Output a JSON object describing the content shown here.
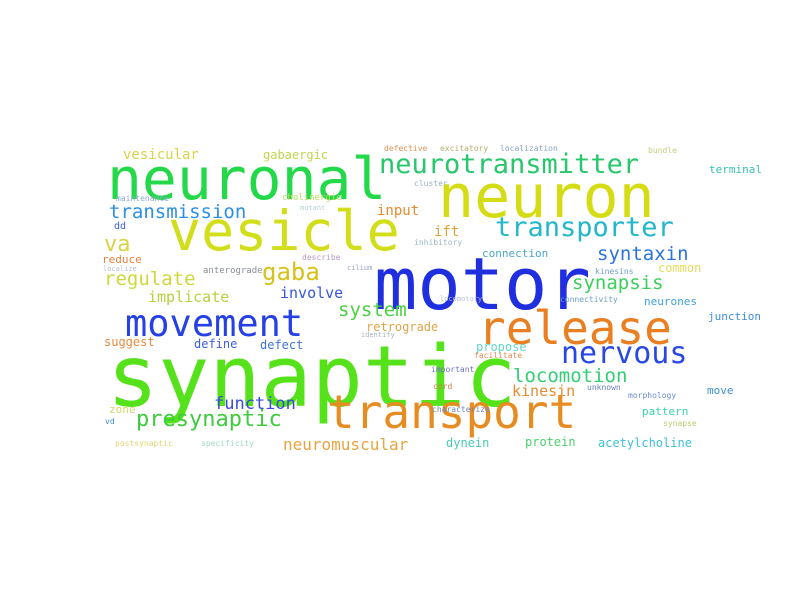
{
  "words": [
    {
      "text": "synaptic",
      "color": "#56e21a"
    },
    {
      "text": "motor",
      "color": "#1f2fe0"
    },
    {
      "text": "neuronal",
      "color": "#23d94a"
    },
    {
      "text": "neuron",
      "color": "#d6dc14"
    },
    {
      "text": "vesicle",
      "color": "#d2de1a"
    },
    {
      "text": "release",
      "color": "#ea7f22"
    },
    {
      "text": "transport",
      "color": "#e78c20"
    },
    {
      "text": "neurotransmitter",
      "color": "#27c86c"
    },
    {
      "text": "movement",
      "color": "#2540e6"
    },
    {
      "text": "nervous",
      "color": "#2848e5"
    },
    {
      "text": "transporter",
      "color": "#22b7c9"
    },
    {
      "text": "gaba",
      "color": "#d8c118"
    },
    {
      "text": "presynaptic",
      "color": "#3ecb3d"
    },
    {
      "text": "transmission",
      "color": "#2b8fe3"
    },
    {
      "text": "syntaxin",
      "color": "#2b72e1"
    },
    {
      "text": "synapsis",
      "color": "#3bd05a"
    },
    {
      "text": "locomotion",
      "color": "#32cf73"
    },
    {
      "text": "regulate",
      "color": "#cfd83a"
    },
    {
      "text": "system",
      "color": "#49d23d"
    },
    {
      "text": "function",
      "color": "#3a48df"
    },
    {
      "text": "neuromuscular",
      "color": "#e7a440"
    },
    {
      "text": "implicate",
      "color": "#b5d23c"
    },
    {
      "text": "involve",
      "color": "#3557e0"
    },
    {
      "text": "va",
      "color": "#d9d33f"
    },
    {
      "text": "kinesin",
      "color": "#e38c36"
    },
    {
      "text": "ift",
      "color": "#e0a43a"
    },
    {
      "text": "input",
      "color": "#e68a2c"
    },
    {
      "text": "vesicular",
      "color": "#d8d44b"
    },
    {
      "text": "gabaergic",
      "color": "#c4d34c"
    },
    {
      "text": "retrograde",
      "color": "#dfa34a"
    },
    {
      "text": "define",
      "color": "#3b5fdf"
    },
    {
      "text": "defect",
      "color": "#3b73df"
    },
    {
      "text": "suggest",
      "color": "#ea8a3d"
    },
    {
      "text": "propose",
      "color": "#5fd6c8"
    },
    {
      "text": "protein",
      "color": "#49d16a"
    },
    {
      "text": "dynein",
      "color": "#48c8b6"
    },
    {
      "text": "acetylcholine",
      "color": "#3fbfd8"
    },
    {
      "text": "pattern",
      "color": "#3bd3a8"
    },
    {
      "text": "zone",
      "color": "#cfd86e"
    },
    {
      "text": "neurones",
      "color": "#3da2dc"
    },
    {
      "text": "connection",
      "color": "#4aa7c8"
    },
    {
      "text": "common",
      "color": "#e3da60"
    },
    {
      "text": "reduce",
      "color": "#e77f3f"
    },
    {
      "text": "anterograde",
      "color": "#8a8f96"
    },
    {
      "text": "cholinergic",
      "color": "#b7dc5a"
    },
    {
      "text": "maintenance",
      "color": "#8fa9d7"
    },
    {
      "text": "dd",
      "color": "#3d61d8"
    },
    {
      "text": "terminal",
      "color": "#38c3b0"
    },
    {
      "text": "junction",
      "color": "#3e8fdc"
    },
    {
      "text": "move",
      "color": "#3e8fdc"
    },
    {
      "text": "postsynaptic",
      "color": "#e2d86d"
    },
    {
      "text": "specificity",
      "color": "#9ed9c9"
    },
    {
      "text": "vd",
      "color": "#3f88d6"
    },
    {
      "text": "important",
      "color": "#6e73c2"
    },
    {
      "text": "characterize",
      "color": "#6b88bb"
    },
    {
      "text": "morphology",
      "color": "#6d8fce"
    },
    {
      "text": "synapse",
      "color": "#b8cf6b"
    },
    {
      "text": "kinesins",
      "color": "#6ea0c9"
    },
    {
      "text": "connectivity",
      "color": "#6ea0c9"
    },
    {
      "text": "cord",
      "color": "#d17a4d"
    },
    {
      "text": "unknown",
      "color": "#6a82c2"
    },
    {
      "text": "inhibitory",
      "color": "#9db6c4"
    },
    {
      "text": "facilitate",
      "color": "#ea8a5a"
    },
    {
      "text": "localization",
      "color": "#8aa3c2"
    },
    {
      "text": "excitatory",
      "color": "#b4ae6d"
    },
    {
      "text": "defective",
      "color": "#e09252"
    },
    {
      "text": "cluster",
      "color": "#9bb2be"
    },
    {
      "text": "bundle",
      "color": "#c7cc7e"
    },
    {
      "text": "describe",
      "color": "#b49ac4"
    },
    {
      "text": "mutant",
      "color": "#b4cfd6"
    },
    {
      "text": "identify",
      "color": "#a6b3c2"
    },
    {
      "text": "cilium",
      "color": "#9b9ec6"
    },
    {
      "text": "localize",
      "color": "#b6bfd6"
    },
    {
      "text": "locomotory",
      "color": "#b6bfd6"
    }
  ]
}
